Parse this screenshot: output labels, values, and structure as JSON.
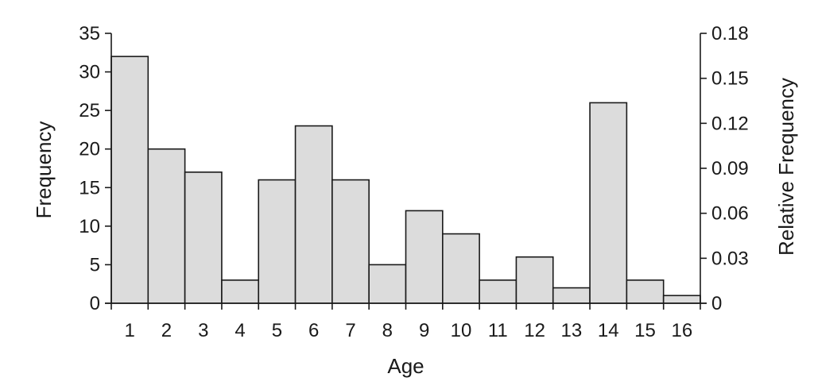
{
  "chart_data": {
    "type": "bar",
    "title": "",
    "xlabel": "Age",
    "ylabel": "Frequency",
    "y2label": "Relative Frequency",
    "categories": [
      "1",
      "2",
      "3",
      "4",
      "5",
      "6",
      "7",
      "8",
      "9",
      "10",
      "11",
      "12",
      "13",
      "14",
      "15",
      "16"
    ],
    "values": [
      32,
      20,
      17,
      3,
      16,
      23,
      16,
      5,
      12,
      9,
      3,
      6,
      2,
      26,
      3,
      1
    ],
    "ylim": [
      0,
      35
    ],
    "yticks": [
      0,
      5,
      10,
      15,
      20,
      25,
      30,
      35
    ],
    "y2lim": [
      0,
      0.18
    ],
    "y2ticks": [
      {
        "value": 0,
        "label": "0"
      },
      {
        "value": 0.03,
        "label": "0.03"
      },
      {
        "value": 0.06,
        "label": "0.06"
      },
      {
        "value": 0.09,
        "label": "0.09"
      },
      {
        "value": 0.12,
        "label": "0.12"
      },
      {
        "value": 0.15,
        "label": "0.15"
      },
      {
        "value": 0.18,
        "label": "0.18"
      }
    ],
    "grid": false,
    "colors": {
      "bar_fill": "#dcdcdc",
      "bar_stroke": "#1a1a1a"
    }
  }
}
